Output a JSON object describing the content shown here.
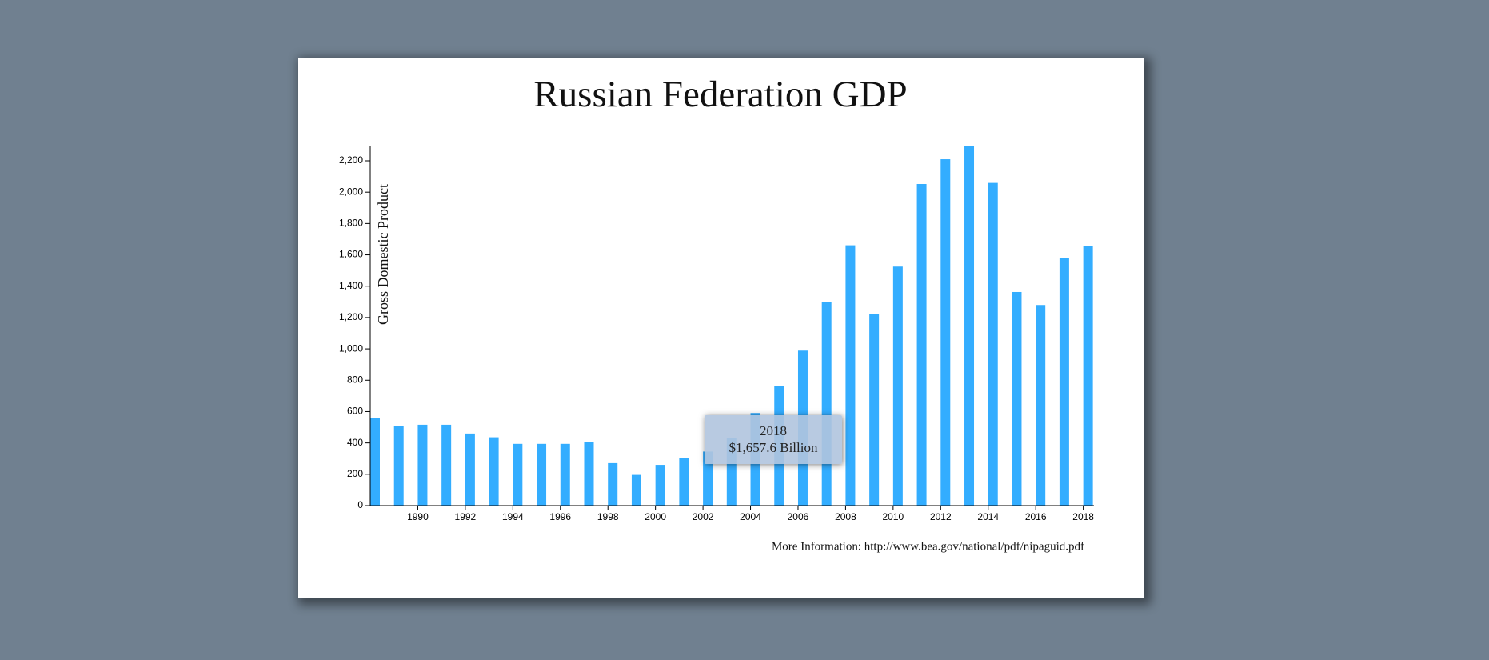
{
  "chart_data": {
    "type": "bar",
    "title": "Russian Federation GDP",
    "y_label": "Gross Domestic Product",
    "footer": "More Information: http://www.bea.gov/national/pdf/nipaguid.pdf",
    "x": [
      1988,
      1989,
      1990,
      1991,
      1992,
      1993,
      1994,
      1995,
      1996,
      1997,
      1998,
      1999,
      2000,
      2001,
      2002,
      2003,
      2004,
      2005,
      2006,
      2007,
      2008,
      2009,
      2010,
      2011,
      2012,
      2013,
      2014,
      2015,
      2016,
      2017,
      2018
    ],
    "values": [
      558,
      509,
      516,
      516,
      460,
      436,
      394,
      394,
      394,
      405,
      271,
      196,
      260,
      306,
      345,
      430,
      591,
      764,
      989,
      1300,
      1661,
      1223,
      1525,
      2052,
      2210,
      2292,
      2059,
      1363,
      1280,
      1578,
      1658
    ],
    "color": "#33adff",
    "xlim": [
      1988,
      2018.45
    ],
    "xticks": [
      1990,
      1992,
      1994,
      1996,
      1998,
      2000,
      2002,
      2004,
      2006,
      2008,
      2010,
      2012,
      2014,
      2016,
      2018
    ],
    "ylim": [
      0,
      2297
    ],
    "yticks": [
      0,
      200,
      400,
      600,
      800,
      {
        "value": 1000,
        "label": "1,000"
      },
      {
        "value": 1200,
        "label": "1,200"
      },
      {
        "value": 1400,
        "label": "1,400"
      },
      {
        "value": 1600,
        "label": "1,600"
      },
      {
        "value": 1800,
        "label": "1,800"
      },
      {
        "value": 2000,
        "label": "2,000"
      },
      {
        "value": 2200,
        "label": "2,200"
      }
    ],
    "tooltip": {
      "year": "2018",
      "label": "$1,657.6 Billion"
    }
  }
}
